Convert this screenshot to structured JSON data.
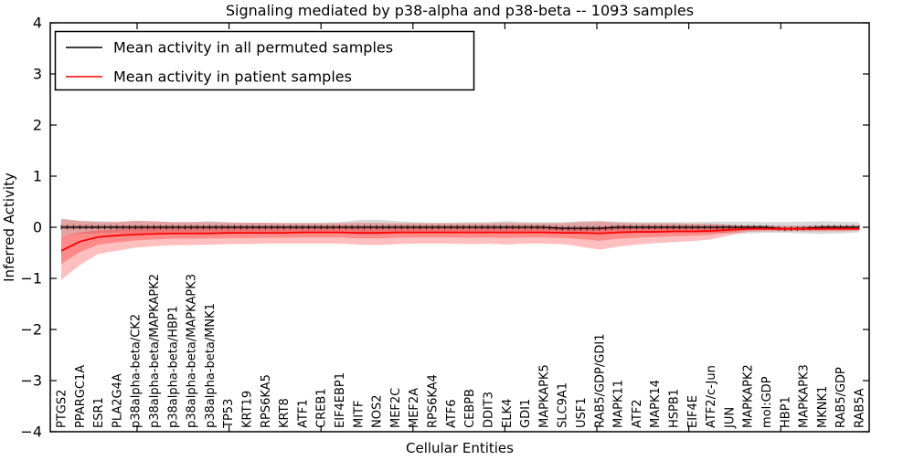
{
  "chart_data": {
    "type": "line",
    "title": "Signaling mediated by p38-alpha and p38-beta -- 1093 samples",
    "xlabel": "Cellular Entities",
    "ylabel": "Inferred Activity",
    "ylim": [
      -4,
      4
    ],
    "yticks": [
      4,
      3,
      2,
      1,
      0,
      -1,
      -2,
      -3,
      -4
    ],
    "grid": false,
    "legend_position": "upper left",
    "xtick_label_rotation_deg": 90,
    "categories": [
      "PTGS2",
      "PPARGC1A",
      "ESR1",
      "PLA2G4A",
      "p38alpha-beta/CK2",
      "p38alpha-beta/MAPKAPK2",
      "p38alpha-beta/HBP1",
      "p38alpha-beta/MAPKAPK3",
      "p38alpha-beta/MNK1",
      "TP53",
      "KRT19",
      "RPS6KA5",
      "KRT8",
      "ATF1",
      "CREB1",
      "EIF4EBP1",
      "MITF",
      "NOS2",
      "MEF2C",
      "MEF2A",
      "RPS6KA4",
      "ATF6",
      "CEBPB",
      "DDIT3",
      "ELK4",
      "GDI1",
      "MAPKAPK5",
      "SLC9A1",
      "USF1",
      "RAB5/GDP/GDI1",
      "MAPK11",
      "ATF2",
      "MAPK14",
      "HSPB1",
      "EIF4E",
      "ATF2/c-Jun",
      "JUN",
      "MAPKAPK2",
      "mol:GDP",
      "HBP1",
      "MAPKAPK3",
      "MKNK1",
      "RAB5/GDP",
      "RAB5A"
    ],
    "series": [
      {
        "name": "Mean activity in all permuted samples",
        "color": "#000000",
        "band_color": "rgba(0,0,0,0.15)",
        "inner_band_color": "rgba(0,0,0,0.22)",
        "mean": [
          0,
          0,
          0,
          0,
          0,
          0,
          0,
          0,
          0,
          0,
          0,
          0,
          0,
          0,
          0,
          0,
          0,
          0,
          0,
          0,
          0,
          0,
          0,
          0,
          0,
          0,
          0,
          -0.02,
          -0.02,
          -0.02,
          0,
          0,
          0,
          0,
          0,
          0,
          0,
          0,
          0,
          -0.03,
          -0.02,
          0,
          0,
          0
        ],
        "band_upper": [
          0.17,
          0.13,
          0.12,
          0.11,
          0.12,
          0.11,
          0.1,
          0.1,
          0.12,
          0.1,
          0.09,
          0.09,
          0.09,
          0.09,
          0.09,
          0.1,
          0.14,
          0.15,
          0.12,
          0.1,
          0.09,
          0.09,
          0.1,
          0.1,
          0.12,
          0.1,
          0.1,
          0.1,
          0.12,
          0.13,
          0.11,
          0.1,
          0.1,
          0.1,
          0.1,
          0.11,
          0.11,
          0.11,
          0.1,
          0.1,
          0.11,
          0.12,
          0.11,
          0.1
        ],
        "band_lower": [
          -0.17,
          -0.13,
          -0.12,
          -0.11,
          -0.12,
          -0.11,
          -0.1,
          -0.1,
          -0.12,
          -0.1,
          -0.09,
          -0.09,
          -0.09,
          -0.09,
          -0.09,
          -0.1,
          -0.14,
          -0.15,
          -0.12,
          -0.1,
          -0.09,
          -0.09,
          -0.1,
          -0.1,
          -0.12,
          -0.1,
          -0.1,
          -0.1,
          -0.12,
          -0.13,
          -0.11,
          -0.1,
          -0.1,
          -0.1,
          -0.1,
          -0.11,
          -0.12,
          -0.12,
          -0.11,
          -0.11,
          -0.12,
          -0.13,
          -0.12,
          -0.1
        ]
      },
      {
        "name": "Mean activity in patient samples",
        "color": "#ff0000",
        "band_color": "rgba(255,0,0,0.25)",
        "inner_band_color": "rgba(255,0,0,0.28)",
        "mean": [
          -0.46,
          -0.28,
          -0.19,
          -0.16,
          -0.14,
          -0.13,
          -0.12,
          -0.12,
          -0.12,
          -0.11,
          -0.11,
          -0.11,
          -0.11,
          -0.1,
          -0.1,
          -0.1,
          -0.11,
          -0.11,
          -0.1,
          -0.1,
          -0.1,
          -0.1,
          -0.1,
          -0.1,
          -0.1,
          -0.1,
          -0.1,
          -0.11,
          -0.11,
          -0.12,
          -0.1,
          -0.09,
          -0.09,
          -0.08,
          -0.08,
          -0.07,
          -0.05,
          -0.03,
          -0.03,
          -0.03,
          -0.03,
          -0.03,
          -0.03,
          -0.03
        ],
        "band_upper": [
          0.16,
          0.12,
          0.1,
          0.1,
          0.13,
          0.12,
          0.1,
          0.1,
          0.1,
          0.09,
          0.09,
          0.09,
          0.08,
          0.08,
          0.08,
          0.08,
          0.09,
          0.09,
          0.08,
          0.08,
          0.08,
          0.08,
          0.08,
          0.08,
          0.09,
          0.08,
          0.08,
          0.08,
          0.1,
          0.11,
          0.09,
          0.08,
          0.08,
          0.08,
          0.07,
          0.07,
          0.05,
          0.03,
          0.03,
          0.03,
          0.03,
          0.03,
          0.03,
          0.03
        ],
        "band_lower": [
          -1.03,
          -0.74,
          -0.52,
          -0.46,
          -0.4,
          -0.37,
          -0.35,
          -0.35,
          -0.34,
          -0.33,
          -0.33,
          -0.32,
          -0.32,
          -0.32,
          -0.32,
          -0.32,
          -0.34,
          -0.35,
          -0.33,
          -0.32,
          -0.32,
          -0.32,
          -0.33,
          -0.32,
          -0.34,
          -0.32,
          -0.32,
          -0.33,
          -0.38,
          -0.44,
          -0.38,
          -0.34,
          -0.31,
          -0.29,
          -0.27,
          -0.24,
          -0.16,
          -0.09,
          -0.08,
          -0.08,
          -0.08,
          -0.08,
          -0.08,
          -0.07
        ]
      }
    ]
  }
}
